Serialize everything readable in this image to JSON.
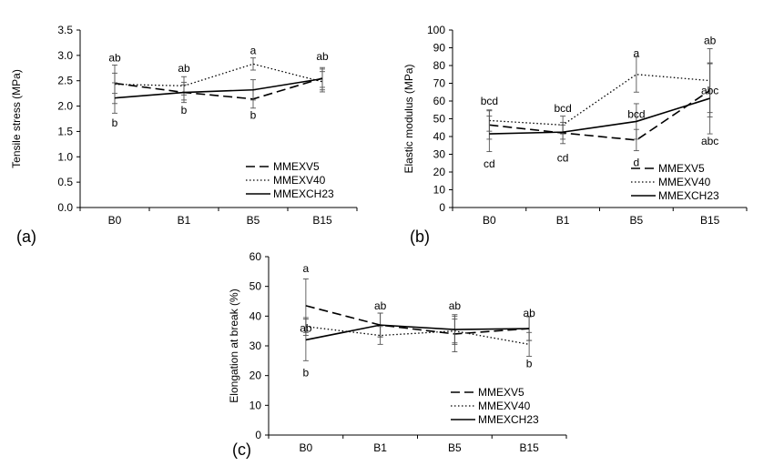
{
  "chart_data": [
    {
      "panel": "(a)",
      "type": "line",
      "ylabel": "Tensile stress (MPa)",
      "xlabel": "",
      "categories": [
        "B0",
        "B1",
        "B5",
        "B15"
      ],
      "ylim": [
        0,
        3.5
      ],
      "yticks": [
        0,
        0.5,
        1,
        1.5,
        2,
        2.5,
        3,
        3.5
      ],
      "ytick_labels": [
        "0.0",
        "0.5",
        "1.0",
        "1.5",
        "2.0",
        "2.5",
        "3.0",
        "3.5"
      ],
      "grid": false,
      "legend": "bottom-right",
      "series": [
        {
          "name": "MMEXV5",
          "style": "dashed",
          "values": [
            2.45,
            2.27,
            2.14,
            2.55
          ],
          "errors": [
            0.2,
            0.2,
            0.18,
            0.18
          ]
        },
        {
          "name": "MMEXV40",
          "style": "dotted",
          "values": [
            2.43,
            2.4,
            2.83,
            2.48
          ],
          "errors": [
            0.38,
            0.18,
            0.12,
            0.2
          ]
        },
        {
          "name": "MMEXCH23",
          "style": "solid",
          "values": [
            2.16,
            2.27,
            2.32,
            2.54
          ],
          "errors": [
            0.3,
            0.15,
            0.2,
            0.22
          ]
        }
      ],
      "annotations": [
        {
          "text": "ab",
          "x": "B0",
          "y": 2.95
        },
        {
          "text": "b",
          "x": "B0",
          "y": 1.67
        },
        {
          "text": "ab",
          "x": "B1",
          "y": 2.75
        },
        {
          "text": "b",
          "x": "B1",
          "y": 1.92
        },
        {
          "text": "a",
          "x": "B5",
          "y": 3.1
        },
        {
          "text": "b",
          "x": "B5",
          "y": 1.82
        },
        {
          "text": "ab",
          "x": "B15",
          "y": 2.98
        }
      ]
    },
    {
      "panel": "(b)",
      "type": "line",
      "ylabel": "Elastic modulus (MPa)",
      "xlabel": "",
      "categories": [
        "B0",
        "B1",
        "B5",
        "B15"
      ],
      "ylim": [
        0,
        100
      ],
      "yticks": [
        0,
        10,
        20,
        30,
        40,
        50,
        60,
        70,
        80,
        90,
        100
      ],
      "ytick_labels": [
        "0",
        "10",
        "20",
        "30",
        "40",
        "50",
        "60",
        "70",
        "80",
        "90",
        "100"
      ],
      "grid": false,
      "legend": "bottom-right",
      "series": [
        {
          "name": "MMEXV5",
          "style": "dashed",
          "values": [
            46.5,
            42,
            38,
            66
          ],
          "errors": [
            8,
            6,
            6,
            15
          ]
        },
        {
          "name": "MMEXV40",
          "style": "dotted",
          "values": [
            49,
            46.5,
            75,
            71.5
          ],
          "errors": [
            6,
            5,
            10,
            18
          ]
        },
        {
          "name": "MMEXCH23",
          "style": "solid",
          "values": [
            41.5,
            42.5,
            48.5,
            61.5
          ],
          "errors": [
            10,
            4,
            10,
            20
          ]
        }
      ],
      "annotations": [
        {
          "text": "bcd",
          "x": "B0",
          "y": 60
        },
        {
          "text": "cd",
          "x": "B0",
          "y": 24.5
        },
        {
          "text": "bcd",
          "x": "B1",
          "y": 56
        },
        {
          "text": "cd",
          "x": "B1",
          "y": 28
        },
        {
          "text": "a",
          "x": "B5",
          "y": 87
        },
        {
          "text": "bcd",
          "x": "B5",
          "y": 52.5
        },
        {
          "text": "d",
          "x": "B5",
          "y": 25.5
        },
        {
          "text": "ab",
          "x": "B15",
          "y": 94
        },
        {
          "text": "abc",
          "x": "B15",
          "y": 66
        },
        {
          "text": "abc",
          "x": "B15",
          "y": 37.5
        }
      ]
    },
    {
      "panel": "(c)",
      "type": "line",
      "ylabel": "Elongation at break (%)",
      "xlabel": "",
      "categories": [
        "B0",
        "B1",
        "B5",
        "B15"
      ],
      "ylim": [
        0,
        60
      ],
      "yticks": [
        0,
        10,
        20,
        30,
        40,
        50,
        60
      ],
      "ytick_labels": [
        "0",
        "10",
        "20",
        "30",
        "40",
        "50",
        "60"
      ],
      "grid": false,
      "legend": "bottom-right",
      "series": [
        {
          "name": "MMEXV5",
          "style": "dashed",
          "values": [
            43.5,
            37,
            34,
            35.8
          ],
          "errors": [
            9,
            4,
            6,
            4
          ]
        },
        {
          "name": "MMEXV40",
          "style": "dotted",
          "values": [
            36.5,
            33.5,
            35,
            30.5
          ],
          "errors": [
            3,
            3,
            4,
            4
          ]
        },
        {
          "name": "MMEXCH23",
          "style": "solid",
          "values": [
            32,
            37,
            35.5,
            35.8
          ],
          "errors": [
            7,
            4,
            5,
            4
          ]
        }
      ],
      "annotations": [
        {
          "text": "a",
          "x": "B0",
          "y": 56
        },
        {
          "text": "ab",
          "x": "B0",
          "y": 36
        },
        {
          "text": "b",
          "x": "B0",
          "y": 21
        },
        {
          "text": "ab",
          "x": "B1",
          "y": 43.5
        },
        {
          "text": "ab",
          "x": "B5",
          "y": 43.5
        },
        {
          "text": "ab",
          "x": "B15",
          "y": 41
        },
        {
          "text": "b",
          "x": "B15",
          "y": 24
        }
      ]
    }
  ]
}
